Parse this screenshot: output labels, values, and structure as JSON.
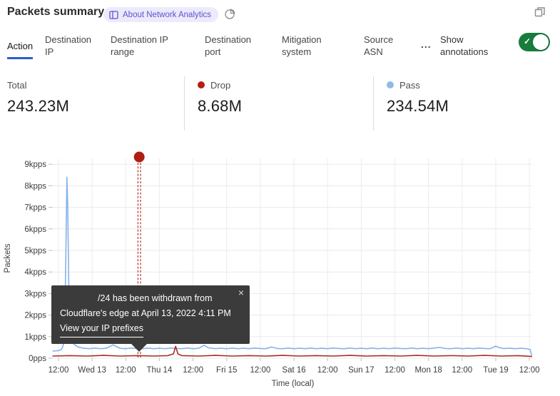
{
  "header": {
    "title": "Packets summary",
    "badge_label": "About Network Analytics"
  },
  "tabs": {
    "items": [
      {
        "label": "Action",
        "selected": true
      },
      {
        "label": "Destination IP",
        "selected": false
      },
      {
        "label": "Destination IP range",
        "selected": false
      },
      {
        "label": "Destination port",
        "selected": false
      },
      {
        "label": "Mitigation system",
        "selected": false
      },
      {
        "label": "Source ASN",
        "selected": false
      }
    ],
    "more_label": "...",
    "annotations_label": "Show annotations",
    "annotations_toggle_on": true,
    "active_underline_color": "#2d5fc8"
  },
  "stats": [
    {
      "label": "Total",
      "value": "243.23M",
      "color": null
    },
    {
      "label": "Drop",
      "value": "8.68M",
      "color": "#bb1b12"
    },
    {
      "label": "Pass",
      "value": "234.54M",
      "color": "#8fbbe8"
    }
  ],
  "tooltip": {
    "line1": "/24 has been withdrawn from",
    "line2": "Cloudflare's edge at April 13, 2022 4:11 PM",
    "link_text": "View your IP prefixes",
    "close_label": "×"
  },
  "chart_data": {
    "type": "line",
    "xlabel": "Time (local)",
    "ylabel": "Packets",
    "grid": true,
    "ylim": [
      0,
      9.3
    ],
    "yticks": {
      "values": [
        0,
        1,
        2,
        3,
        4,
        5,
        6,
        7,
        8,
        9
      ],
      "labels": [
        "0pps",
        "1kpps",
        "2kpps",
        "3kpps",
        "4kpps",
        "5kpps",
        "6kpps",
        "7kpps",
        "8kpps",
        "9kpps"
      ]
    },
    "xticks": {
      "interval_hours": 12,
      "labels": [
        "12:00",
        "Wed 13",
        "12:00",
        "Thu 14",
        "12:00",
        "Fri 15",
        "12:00",
        "Sat 16",
        "12:00",
        "Sun 17",
        "12:00",
        "Mon 18",
        "12:00",
        "Tue 19",
        "12:00"
      ]
    },
    "annotation": {
      "x_hours": 28.8,
      "date_text": "April 13, 2022 4:11 PM",
      "color": "#b01d12",
      "style": "dashed-vertical",
      "marker": "dot"
    },
    "series": [
      {
        "name": "Pass",
        "color": "#85b3e8",
        "unit": "kpps",
        "points": [
          [
            -2,
            0.33
          ],
          [
            0,
            0.35
          ],
          [
            1.2,
            0.42
          ],
          [
            2.2,
            0.8
          ],
          [
            2.7,
            5.5
          ],
          [
            3.0,
            8.4
          ],
          [
            3.3,
            7.0
          ],
          [
            3.8,
            2.0
          ],
          [
            4.6,
            1.0
          ],
          [
            5.5,
            0.65
          ],
          [
            7,
            0.52
          ],
          [
            9,
            0.46
          ],
          [
            11,
            0.44
          ],
          [
            13,
            0.47
          ],
          [
            15,
            0.44
          ],
          [
            17,
            0.46
          ],
          [
            19.5,
            0.62
          ],
          [
            20.5,
            0.55
          ],
          [
            22,
            0.46
          ],
          [
            24,
            0.44
          ],
          [
            26,
            0.47
          ],
          [
            28,
            0.45
          ],
          [
            30,
            0.44
          ],
          [
            32,
            0.47
          ],
          [
            34,
            0.44
          ],
          [
            36,
            0.46
          ],
          [
            38,
            0.44
          ],
          [
            40,
            0.47
          ],
          [
            42,
            0.45
          ],
          [
            44,
            0.44
          ],
          [
            46,
            0.47
          ],
          [
            48,
            0.44
          ],
          [
            50,
            0.46
          ],
          [
            52,
            0.6
          ],
          [
            53.5,
            0.48
          ],
          [
            56,
            0.44
          ],
          [
            58,
            0.46
          ],
          [
            60,
            0.44
          ],
          [
            62,
            0.47
          ],
          [
            64,
            0.44
          ],
          [
            66,
            0.46
          ],
          [
            68,
            0.44
          ],
          [
            70,
            0.47
          ],
          [
            72,
            0.45
          ],
          [
            74,
            0.44
          ],
          [
            76,
            0.52
          ],
          [
            78,
            0.45
          ],
          [
            80,
            0.44
          ],
          [
            82,
            0.47
          ],
          [
            84,
            0.44
          ],
          [
            86,
            0.46
          ],
          [
            88,
            0.44
          ],
          [
            90,
            0.47
          ],
          [
            92,
            0.44
          ],
          [
            94,
            0.46
          ],
          [
            96,
            0.44
          ],
          [
            98,
            0.47
          ],
          [
            100,
            0.45
          ],
          [
            102,
            0.44
          ],
          [
            104,
            0.47
          ],
          [
            106,
            0.44
          ],
          [
            108,
            0.46
          ],
          [
            110,
            0.44
          ],
          [
            112,
            0.47
          ],
          [
            114,
            0.44
          ],
          [
            116,
            0.46
          ],
          [
            118,
            0.44
          ],
          [
            120,
            0.47
          ],
          [
            122,
            0.45
          ],
          [
            124,
            0.44
          ],
          [
            126,
            0.47
          ],
          [
            128,
            0.44
          ],
          [
            130,
            0.46
          ],
          [
            132,
            0.44
          ],
          [
            134,
            0.47
          ],
          [
            136,
            0.5
          ],
          [
            138,
            0.45
          ],
          [
            140,
            0.44
          ],
          [
            142,
            0.47
          ],
          [
            144,
            0.44
          ],
          [
            146,
            0.46
          ],
          [
            148,
            0.44
          ],
          [
            150,
            0.47
          ],
          [
            152,
            0.45
          ],
          [
            154,
            0.44
          ],
          [
            156,
            0.56
          ],
          [
            157.5,
            0.48
          ],
          [
            159,
            0.45
          ],
          [
            161,
            0.46
          ],
          [
            163,
            0.44
          ],
          [
            165,
            0.46
          ],
          [
            167,
            0.44
          ],
          [
            168.3,
            0.4
          ],
          [
            168.8,
            0.14
          ]
        ]
      },
      {
        "name": "Drop",
        "color": "#a82d20",
        "unit": "kpps",
        "points": [
          [
            -2,
            0.1
          ],
          [
            4,
            0.12
          ],
          [
            10,
            0.1
          ],
          [
            16,
            0.13
          ],
          [
            22,
            0.1
          ],
          [
            28,
            0.12
          ],
          [
            34,
            0.1
          ],
          [
            39,
            0.12
          ],
          [
            41,
            0.2
          ],
          [
            41.8,
            0.55
          ],
          [
            42.6,
            0.2
          ],
          [
            44,
            0.12
          ],
          [
            50,
            0.1
          ],
          [
            56,
            0.13
          ],
          [
            62,
            0.1
          ],
          [
            68,
            0.12
          ],
          [
            74,
            0.1
          ],
          [
            80,
            0.13
          ],
          [
            86,
            0.1
          ],
          [
            92,
            0.12
          ],
          [
            98,
            0.1
          ],
          [
            104,
            0.13
          ],
          [
            110,
            0.1
          ],
          [
            116,
            0.12
          ],
          [
            122,
            0.1
          ],
          [
            128,
            0.13
          ],
          [
            134,
            0.1
          ],
          [
            140,
            0.12
          ],
          [
            146,
            0.1
          ],
          [
            152,
            0.13
          ],
          [
            158,
            0.1
          ],
          [
            164,
            0.12
          ],
          [
            168.8,
            0.08
          ]
        ]
      }
    ]
  }
}
